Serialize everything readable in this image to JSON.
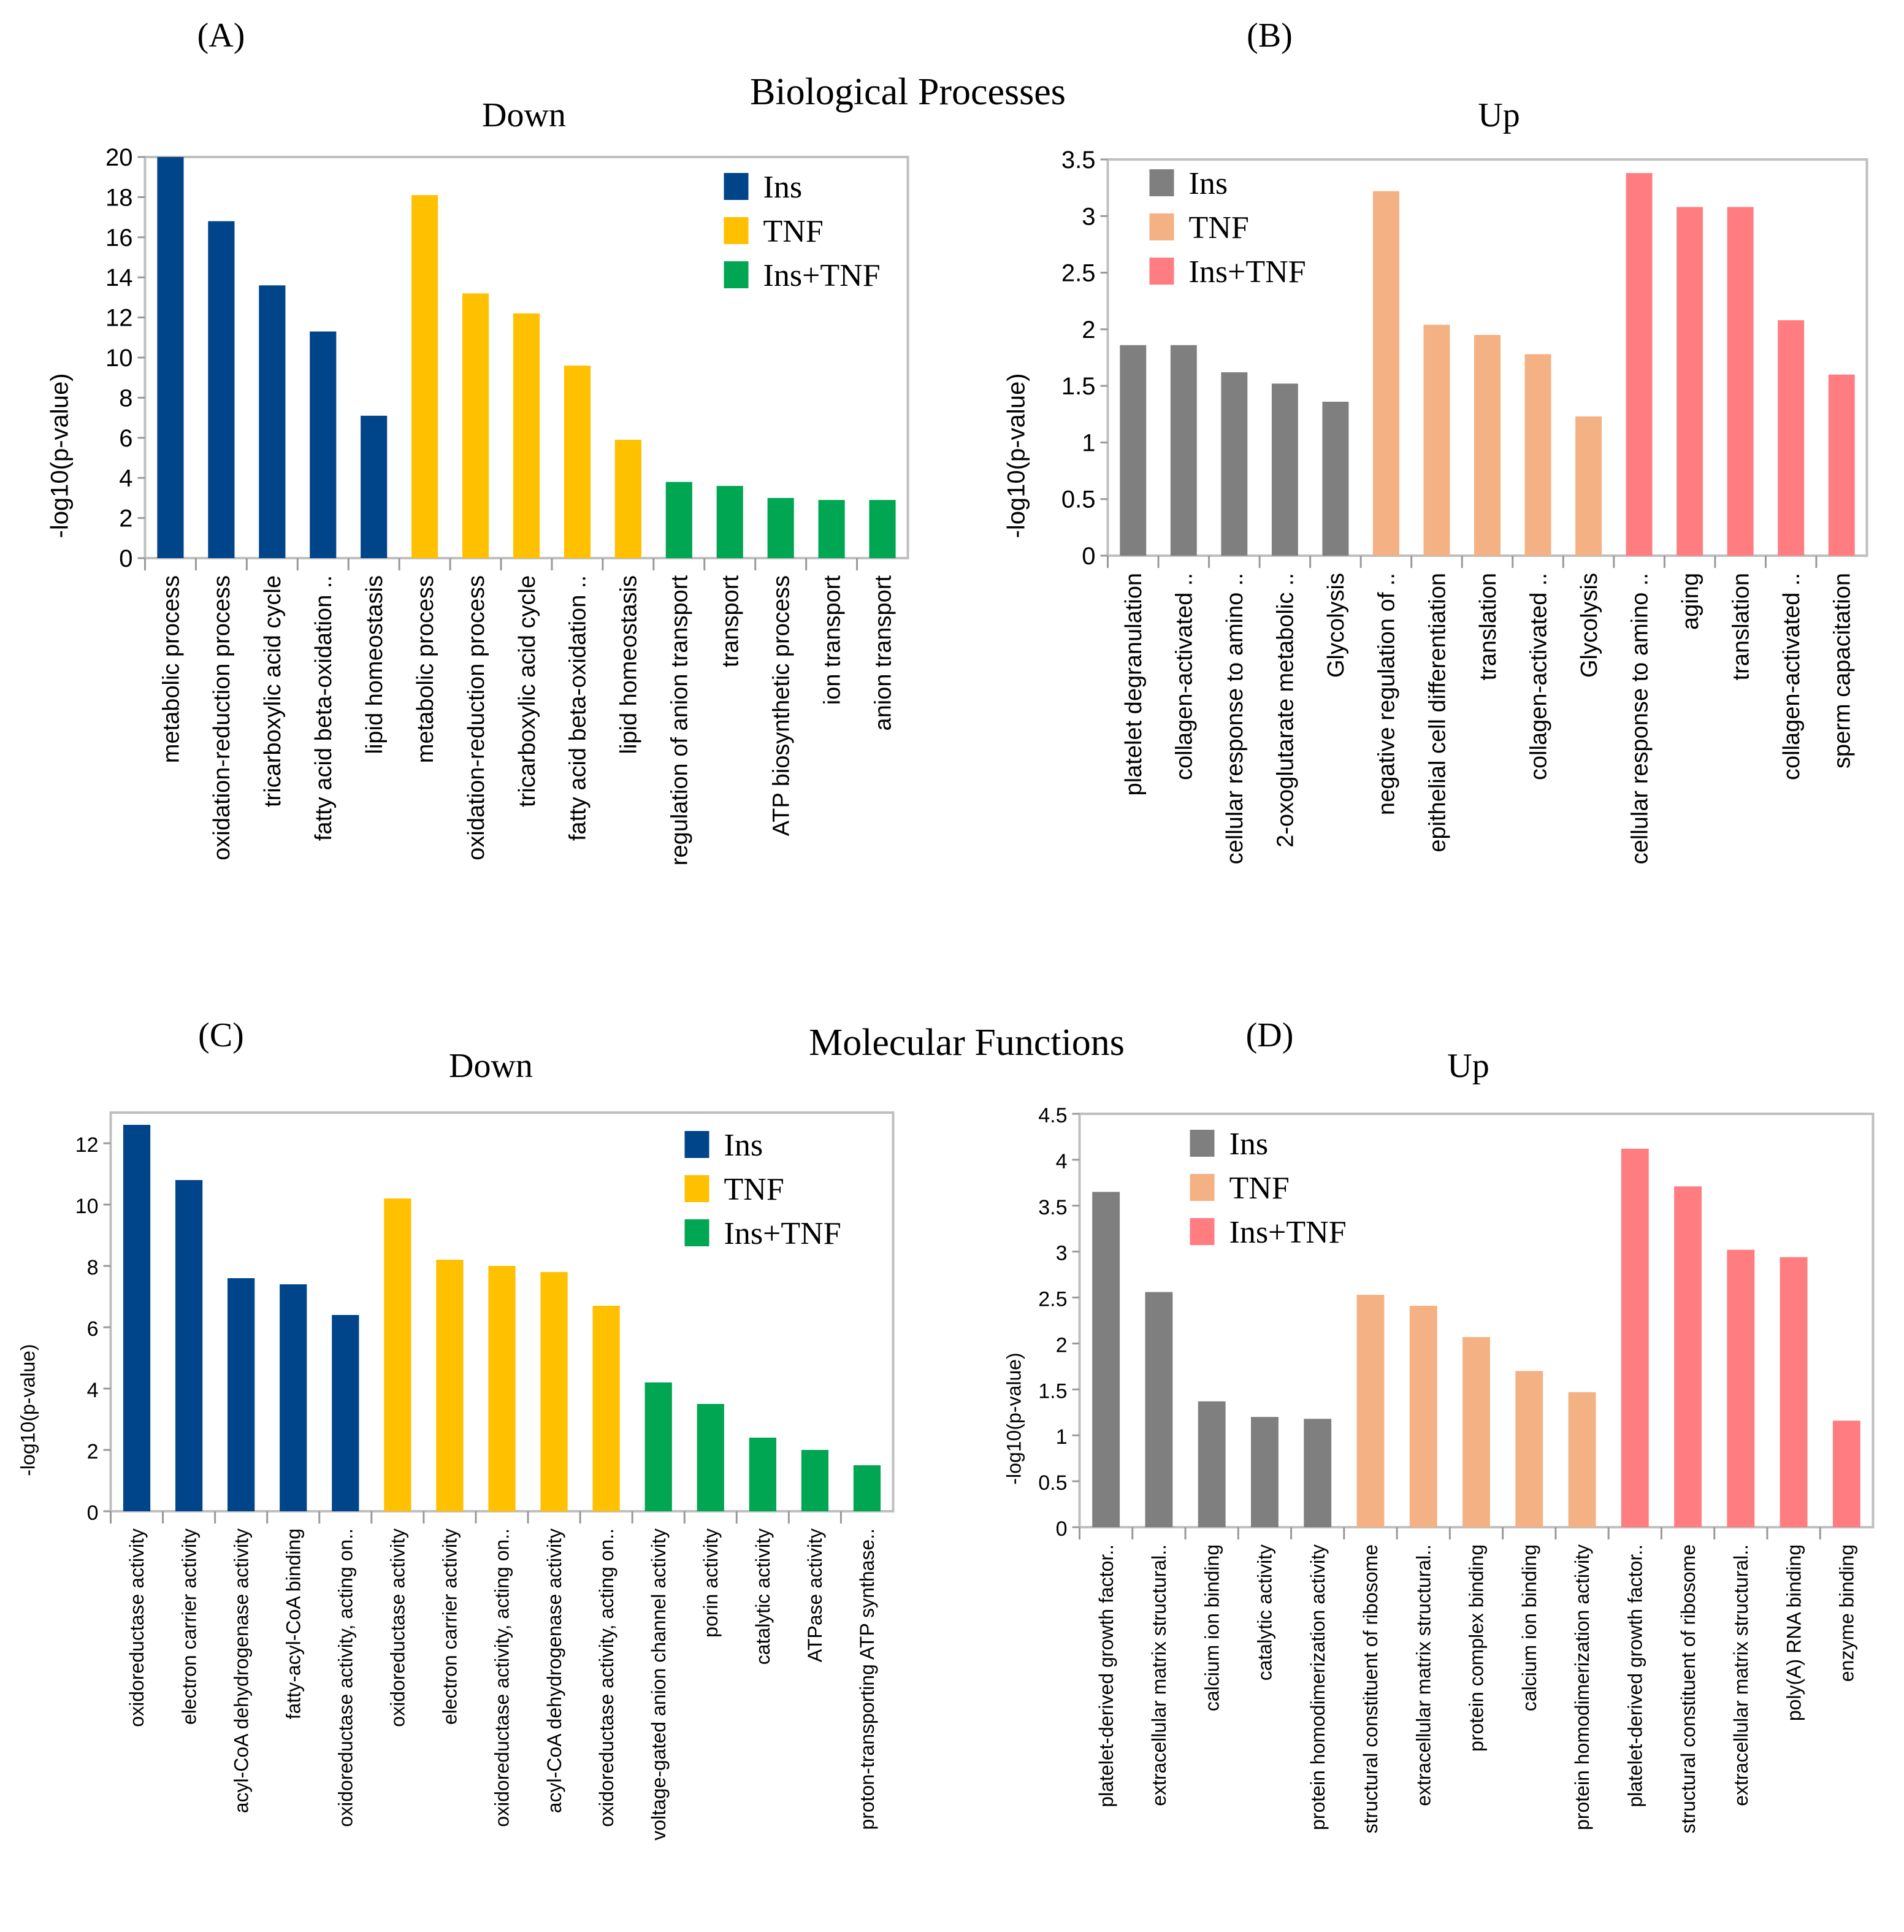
{
  "section_titles": {
    "biological": "Biological Processes",
    "molecular": "Molecular Functions"
  },
  "legend_labels": [
    "Ins",
    "TNF",
    "Ins+TNF"
  ],
  "chart_data": [
    {
      "panel": "(A)",
      "title": "Down",
      "type": "bar",
      "ylabel": "-log10(p-value)",
      "ylim": [
        0,
        20
      ],
      "yticks": [
        0,
        2,
        4,
        6,
        8,
        10,
        12,
        14,
        16,
        18,
        20
      ],
      "grid": false,
      "legend": "top-right",
      "colors": [
        "#00448a",
        "#ffc000",
        "#00a651"
      ],
      "categories": [
        "metabolic process",
        "oxidation-reduction  process",
        "tricarboxylic acid cycle",
        "fatty acid beta-oxidation ..",
        "lipid homeostasis",
        "metabolic process",
        "oxidation-reduction  process",
        "tricarboxylic acid cycle",
        "fatty acid beta-oxidation ..",
        "lipid homeostasis",
        "regulation of anion transport",
        "transport",
        "ATP biosynthetic process",
        "ion transport",
        "anion transport"
      ],
      "groups": [
        0,
        0,
        0,
        0,
        0,
        1,
        1,
        1,
        1,
        1,
        2,
        2,
        2,
        2,
        2
      ],
      "values": [
        20,
        16.8,
        13.6,
        11.3,
        7.1,
        18.1,
        13.2,
        12.2,
        9.6,
        5.9,
        3.8,
        3.6,
        3.0,
        2.9,
        2.9
      ]
    },
    {
      "panel": "(B)",
      "title": "Up",
      "type": "bar",
      "ylabel": "-log10(p-value)",
      "ylim": [
        0,
        3.5
      ],
      "yticks": [
        0,
        0.5,
        1,
        1.5,
        2,
        2.5,
        3,
        3.5
      ],
      "grid": false,
      "legend": "top-left",
      "colors": [
        "#7f7f7f",
        "#f4b183",
        "#ff7c80"
      ],
      "categories": [
        "platelet degranulation",
        "collagen-activated ..",
        "cellular response to amino ..",
        "2-oxoglutarate  metabolic ..",
        "Glycolysis",
        "negative  regulation  of ..",
        "epithelial cell differentiation",
        "translation",
        "collagen-activated ..",
        "Glycolysis",
        "cellular response to amino ..",
        "aging",
        "translation",
        "collagen-activated ..",
        "sperm capacitation"
      ],
      "groups": [
        0,
        0,
        0,
        0,
        0,
        1,
        1,
        1,
        1,
        1,
        2,
        2,
        2,
        2,
        2
      ],
      "values": [
        1.86,
        1.86,
        1.62,
        1.52,
        1.36,
        3.22,
        2.04,
        1.95,
        1.78,
        1.23,
        3.38,
        3.08,
        3.08,
        2.08,
        1.6
      ]
    },
    {
      "panel": "(C)",
      "title": "Down",
      "type": "bar",
      "ylabel": "-log10(p-value)",
      "ylim": [
        0,
        13
      ],
      "yticks": [
        0,
        2,
        4,
        6,
        8,
        10,
        12
      ],
      "grid": false,
      "legend": "top-right",
      "colors": [
        "#00448a",
        "#ffc000",
        "#00a651"
      ],
      "categories": [
        "oxidoreductase activity",
        "electron carrier activity",
        "acyl-CoA dehydrogenase  activity",
        "fatty-acyl-CoA binding",
        "oxidoreductase  activity, acting on..",
        "oxidoreductase activity",
        "electron carrier activity",
        "oxidoreductase activity, acting on..",
        "acyl-CoA dehydrogenase activity",
        "oxidoreductase activity, acting on..",
        "voltage-gated  anion channel activity",
        "porin activity",
        "catalytic activity",
        "ATPase activity",
        "proton-transporting  ATP synthase.."
      ],
      "groups": [
        0,
        0,
        0,
        0,
        0,
        1,
        1,
        1,
        1,
        1,
        2,
        2,
        2,
        2,
        2
      ],
      "values": [
        12.6,
        10.8,
        7.6,
        7.4,
        6.4,
        10.2,
        8.2,
        8.0,
        7.8,
        6.7,
        4.2,
        3.5,
        2.4,
        2.0,
        1.5
      ]
    },
    {
      "panel": "(D)",
      "title": "Up",
      "type": "bar",
      "ylabel": "-log10(p-value)",
      "ylim": [
        0,
        4.5
      ],
      "yticks": [
        0,
        0.5,
        1,
        1.5,
        2,
        2.5,
        3,
        3.5,
        4,
        4.5
      ],
      "grid": false,
      "legend": "top-left",
      "colors": [
        "#7f7f7f",
        "#f4b183",
        "#ff7c80"
      ],
      "categories": [
        "platelet-derived  growth factor..",
        "extracellular matrix structural..",
        "calcium ion binding",
        "catalytic activity",
        "protein homodimerization  activity",
        "structural constituent of ribosome",
        "extracellular matrix structural..",
        "protein complex binding",
        "calcium ion binding",
        "protein homodimerization  activity",
        "platelet-derived  growth factor..",
        "structural constituent of ribosome",
        "extracellular matrix structural..",
        "poly(A) RNA binding",
        "enzyme binding"
      ],
      "groups": [
        0,
        0,
        0,
        0,
        0,
        1,
        1,
        1,
        1,
        1,
        2,
        2,
        2,
        2,
        2
      ],
      "values": [
        3.65,
        2.56,
        1.37,
        1.2,
        1.18,
        2.53,
        2.41,
        2.07,
        1.7,
        1.47,
        4.12,
        3.71,
        3.02,
        2.94,
        1.16
      ]
    }
  ]
}
